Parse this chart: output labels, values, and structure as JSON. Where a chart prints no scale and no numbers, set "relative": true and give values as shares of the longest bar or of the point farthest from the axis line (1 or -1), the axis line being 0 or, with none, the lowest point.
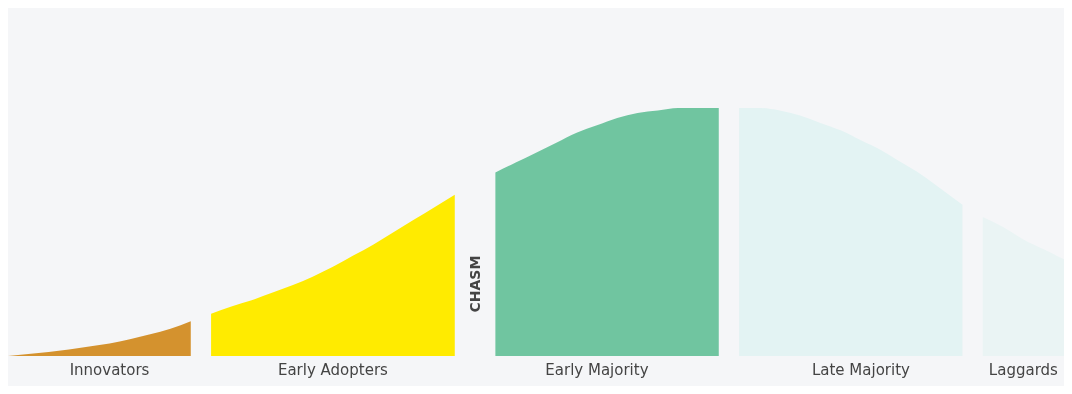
{
  "chart_data": {
    "type": "area",
    "relative": true,
    "categories": [
      null,
      null,
      null,
      null,
      null,
      "Innovators",
      null,
      null,
      null,
      null,
      null,
      null,
      null,
      null,
      null,
      null,
      "Early Adopters",
      null,
      null,
      null,
      null,
      null,
      null,
      null,
      null,
      null,
      null,
      null,
      null,
      "Early Majority",
      null,
      null,
      null,
      null,
      null,
      null,
      null,
      null,
      null,
      null,
      null,
      null,
      "Late Majority",
      null,
      null,
      null,
      null,
      null,
      null,
      null,
      "Laggards",
      null,
      null
    ],
    "annotations": [
      "CHASM"
    ],
    "series": [
      {
        "color": "#d4922e",
        "values": [
          0,
          0.008,
          0.016,
          0.026,
          0.038,
          0.05,
          0.068,
          0.088,
          0.11,
          0.14,
          null,
          null,
          null,
          null,
          null,
          null,
          null,
          null,
          null,
          null,
          null,
          null,
          null,
          null,
          null,
          null,
          null,
          null,
          null,
          null,
          null,
          null,
          null,
          null,
          null,
          null,
          null,
          null,
          null,
          null,
          null,
          null,
          null,
          null,
          null,
          null,
          null,
          null,
          null,
          null,
          null,
          null,
          null
        ]
      },
      {
        "color": "#ffeb00",
        "values": [
          null,
          null,
          null,
          null,
          null,
          null,
          null,
          null,
          null,
          null,
          0.17,
          0.2,
          0.225,
          0.255,
          0.285,
          0.32,
          0.36,
          0.405,
          0.45,
          0.5,
          0.55,
          0.6,
          0.65,
          null,
          null,
          null,
          null,
          null,
          null,
          null,
          null,
          null,
          null,
          null,
          null,
          null,
          null,
          null,
          null,
          null,
          null,
          null,
          null,
          null,
          null,
          null,
          null,
          null,
          null,
          null,
          null,
          null,
          null
        ]
      },
      {
        "color": "#70c5a0",
        "values": [
          null,
          null,
          null,
          null,
          null,
          null,
          null,
          null,
          null,
          null,
          null,
          null,
          null,
          null,
          null,
          null,
          null,
          null,
          null,
          null,
          null,
          null,
          null,
          null,
          0.74,
          0.78,
          0.82,
          0.86,
          0.9,
          0.93,
          0.96,
          0.98,
          0.99,
          1,
          1,
          1,
          null,
          null,
          null,
          null,
          null,
          null,
          null,
          null,
          null,
          null,
          null,
          null,
          null,
          null,
          null,
          null,
          null
        ]
      },
      {
        "color": "#e3f3f3",
        "values": [
          null,
          null,
          null,
          null,
          null,
          null,
          null,
          null,
          null,
          null,
          null,
          null,
          null,
          null,
          null,
          null,
          null,
          null,
          null,
          null,
          null,
          null,
          null,
          null,
          null,
          null,
          null,
          null,
          null,
          null,
          null,
          null,
          null,
          null,
          null,
          null,
          1,
          1,
          0.99,
          0.97,
          0.94,
          0.91,
          0.87,
          0.83,
          0.78,
          0.73,
          0.67,
          0.61,
          null,
          null,
          null,
          null,
          null
        ]
      },
      {
        "color": "#eaf4f4",
        "values": [
          null,
          null,
          null,
          null,
          null,
          null,
          null,
          null,
          null,
          null,
          null,
          null,
          null,
          null,
          null,
          null,
          null,
          null,
          null,
          null,
          null,
          null,
          null,
          null,
          null,
          null,
          null,
          null,
          null,
          null,
          null,
          null,
          null,
          null,
          null,
          null,
          null,
          null,
          null,
          null,
          null,
          null,
          null,
          null,
          null,
          null,
          null,
          null,
          0.56,
          0.52,
          0.47,
          0.43,
          0.39
        ]
      }
    ]
  }
}
